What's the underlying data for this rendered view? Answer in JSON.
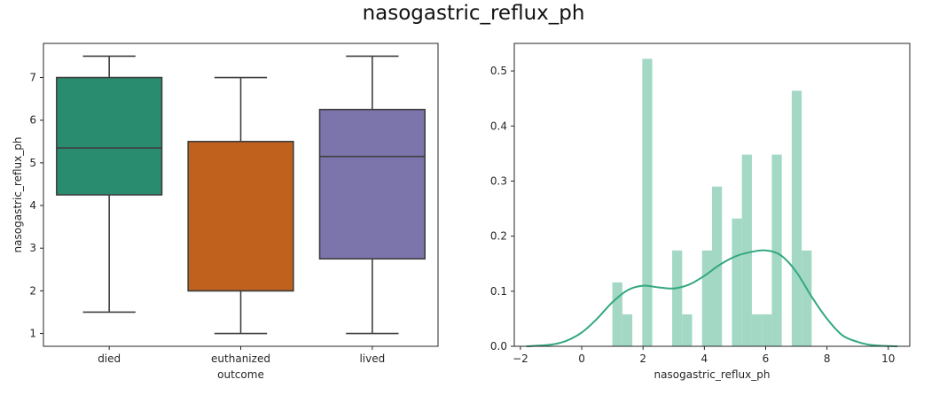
{
  "suptitle": "nasogastric_reflux_ph",
  "chart_data": [
    {
      "type": "box",
      "xlabel": "outcome",
      "ylabel": "nasogastric_reflux_ph",
      "ylim": [
        0.7,
        7.8
      ],
      "yticks": [
        1,
        2,
        3,
        4,
        5,
        6,
        7
      ],
      "categories": [
        "died",
        "euthanized",
        "lived"
      ],
      "boxes": [
        {
          "category": "died",
          "whisker_low": 1.5,
          "q1": 4.25,
          "median": 5.35,
          "q3": 7.0,
          "whisker_high": 7.5,
          "color": "#2a8c6e"
        },
        {
          "category": "euthanized",
          "whisker_low": 1.0,
          "q1": 2.0,
          "median": 2.0,
          "q3": 5.5,
          "whisker_high": 7.0,
          "color": "#c0621d"
        },
        {
          "category": "lived",
          "whisker_low": 1.0,
          "q1": 2.75,
          "median": 5.15,
          "q3": 6.25,
          "whisker_high": 7.5,
          "color": "#7b75ac"
        }
      ],
      "grid": false
    },
    {
      "type": "histogram",
      "xlabel": "nasogastric_reflux_ph",
      "ylabel": "",
      "xlim": [
        -2.2,
        10.7
      ],
      "ylim": [
        0,
        0.55
      ],
      "xticks": [
        -2,
        0,
        2,
        4,
        6,
        8,
        10
      ],
      "yticks": [
        0.0,
        0.1,
        0.2,
        0.3,
        0.4,
        0.5
      ],
      "bin_width": 0.325,
      "bins": [
        {
          "x0": 1.0,
          "density": 0.116
        },
        {
          "x0": 1.325,
          "density": 0.058
        },
        {
          "x0": 1.975,
          "density": 0.522
        },
        {
          "x0": 2.95,
          "density": 0.174
        },
        {
          "x0": 3.275,
          "density": 0.058
        },
        {
          "x0": 3.925,
          "density": 0.174
        },
        {
          "x0": 4.25,
          "density": 0.29
        },
        {
          "x0": 4.9,
          "density": 0.232
        },
        {
          "x0": 5.225,
          "density": 0.348
        },
        {
          "x0": 5.55,
          "density": 0.058
        },
        {
          "x0": 5.875,
          "density": 0.058
        },
        {
          "x0": 6.2,
          "density": 0.348
        },
        {
          "x0": 6.85,
          "density": 0.464
        },
        {
          "x0": 7.175,
          "density": 0.174
        }
      ],
      "kde": {
        "x": [
          -1.8,
          -1.0,
          -0.5,
          0.0,
          0.5,
          1.0,
          1.5,
          2.0,
          2.5,
          3.0,
          3.5,
          4.0,
          4.5,
          5.0,
          5.5,
          6.0,
          6.5,
          7.0,
          7.5,
          8.0,
          8.5,
          9.0,
          9.5,
          10.3
        ],
        "y": [
          0.0,
          0.003,
          0.01,
          0.025,
          0.05,
          0.08,
          0.102,
          0.11,
          0.107,
          0.105,
          0.112,
          0.128,
          0.148,
          0.163,
          0.171,
          0.174,
          0.165,
          0.135,
          0.09,
          0.05,
          0.02,
          0.008,
          0.002,
          0.0
        ]
      },
      "colors": {
        "bars": "#a3d8c4",
        "kde": "#33a880"
      },
      "grid": false
    }
  ]
}
